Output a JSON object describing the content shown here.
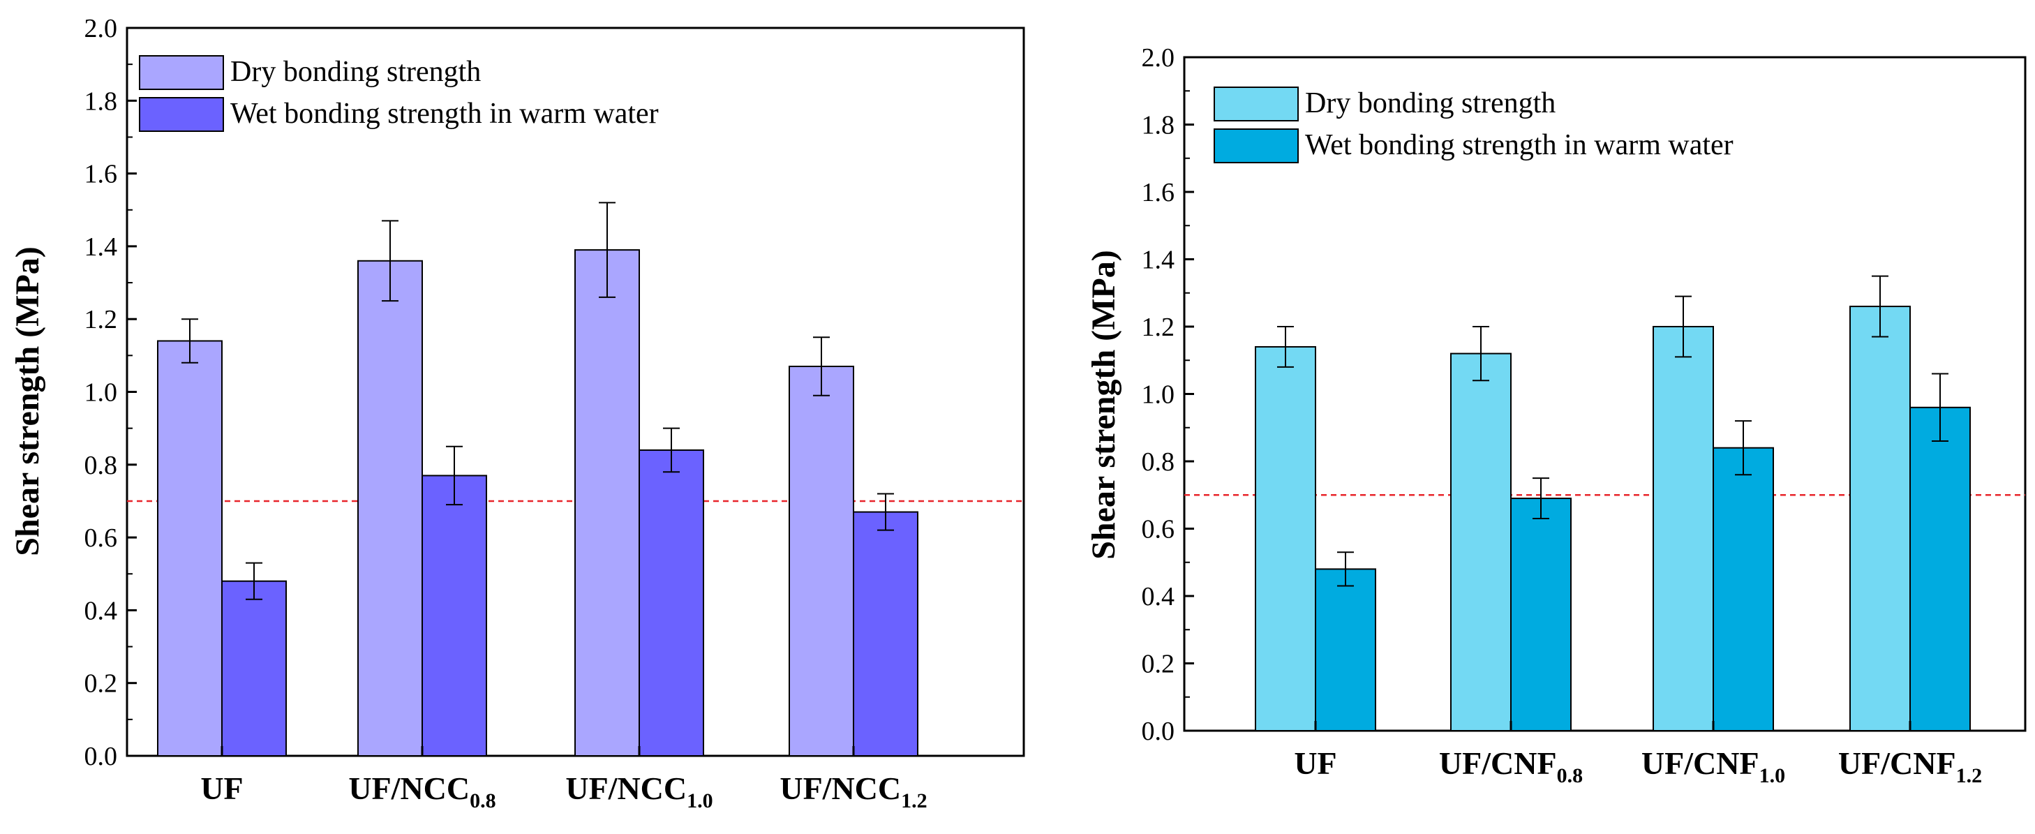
{
  "chart_data": [
    {
      "type": "bar",
      "panel": "left",
      "categories": [
        {
          "main": "UF",
          "sub": ""
        },
        {
          "main": "UF/NCC",
          "sub": "0.8"
        },
        {
          "main": "UF/NCC",
          "sub": "1.0"
        },
        {
          "main": "UF/NCC",
          "sub": "1.2"
        }
      ],
      "series": [
        {
          "name": "Dry bonding strength",
          "color": "#aaa6ff",
          "values": [
            1.14,
            1.36,
            1.39,
            1.07
          ],
          "errors": [
            0.06,
            0.11,
            0.13,
            0.08
          ]
        },
        {
          "name": "Wet bonding strength in warm water",
          "color": "#6b62ff",
          "values": [
            0.48,
            0.77,
            0.84,
            0.67
          ],
          "errors": [
            0.05,
            0.08,
            0.06,
            0.05
          ]
        }
      ],
      "ylabel": "Shear strength (MPa)",
      "ylim": [
        0,
        2.0
      ],
      "yticks": [
        "0.0",
        "0.2",
        "0.4",
        "0.6",
        "0.8",
        "1.0",
        "1.2",
        "1.4",
        "1.6",
        "1.8",
        "2.0"
      ],
      "reference_line": {
        "value": 0.7,
        "color": "#e8252b",
        "style": "dashed"
      },
      "legend_position": "top-left"
    },
    {
      "type": "bar",
      "panel": "right",
      "categories": [
        {
          "main": "UF",
          "sub": ""
        },
        {
          "main": "UF/CNF",
          "sub": "0.8"
        },
        {
          "main": "UF/CNF",
          "sub": "1.0"
        },
        {
          "main": "UF/CNF",
          "sub": "1.2"
        }
      ],
      "series": [
        {
          "name": "Dry bonding strength",
          "color": "#73d9f3",
          "values": [
            1.14,
            1.12,
            1.2,
            1.26
          ],
          "errors": [
            0.06,
            0.08,
            0.09,
            0.09
          ]
        },
        {
          "name": "Wet bonding strength in warm water",
          "color": "#00abe0",
          "values": [
            0.48,
            0.69,
            0.84,
            0.96
          ],
          "errors": [
            0.05,
            0.06,
            0.08,
            0.1
          ]
        }
      ],
      "ylabel": "Shear strength (MPa)",
      "ylim": [
        0,
        2.0
      ],
      "yticks": [
        "0.0",
        "0.2",
        "0.4",
        "0.6",
        "0.8",
        "1.0",
        "1.2",
        "1.4",
        "1.6",
        "1.8",
        "2.0"
      ],
      "reference_line": {
        "value": 0.7,
        "color": "#e8252b",
        "style": "dashed"
      },
      "legend_position": "top-left"
    }
  ]
}
